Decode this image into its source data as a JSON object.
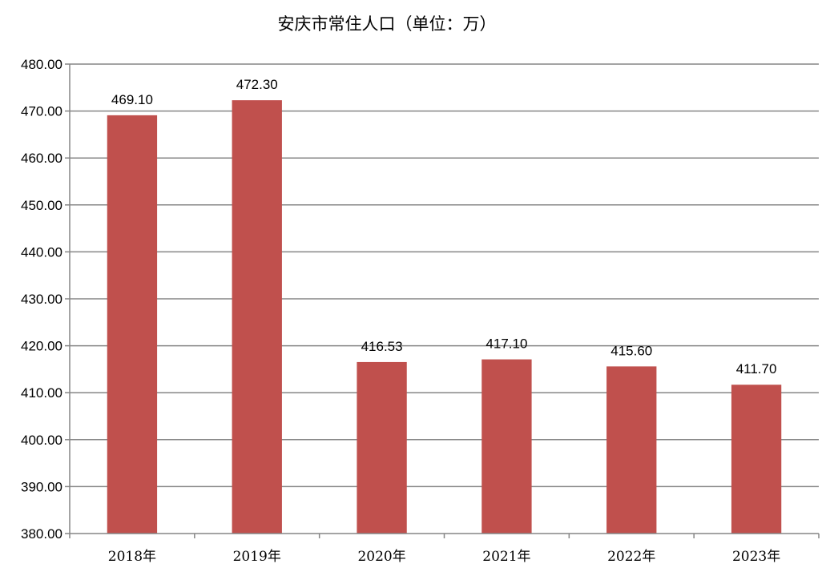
{
  "chart_data": {
    "type": "bar",
    "title": "安庆市常住人口（单位：万）",
    "categories": [
      "2018年",
      "2019年",
      "2020年",
      "2021年",
      "2022年",
      "2023年"
    ],
    "values": [
      469.1,
      472.3,
      416.53,
      417.1,
      415.6,
      411.7
    ],
    "data_labels": [
      "469.10",
      "472.30",
      "416.53",
      "417.10",
      "415.60",
      "411.70"
    ],
    "y_ticks": [
      "380.00",
      "390.00",
      "400.00",
      "410.00",
      "420.00",
      "430.00",
      "440.00",
      "450.00",
      "460.00",
      "470.00",
      "480.00"
    ],
    "ylim": [
      380,
      480
    ],
    "grid": true,
    "legend": "none",
    "bar_color": "#c0504d",
    "grid_color": "#868686"
  }
}
